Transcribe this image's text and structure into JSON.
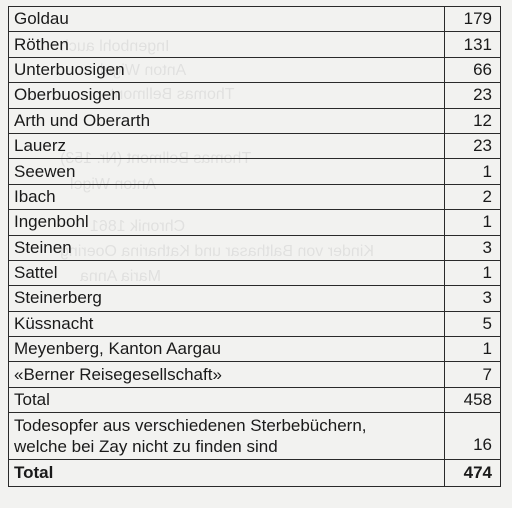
{
  "rows": [
    {
      "place": "Goldau",
      "count": "179"
    },
    {
      "place": "Röthen",
      "count": "131"
    },
    {
      "place": "Unterbuosigen",
      "count": "66"
    },
    {
      "place": "Oberbuosigen",
      "count": "23"
    },
    {
      "place": "Arth und Oberarth",
      "count": "12"
    },
    {
      "place": "Lauerz",
      "count": "23"
    },
    {
      "place": "Seewen",
      "count": "1"
    },
    {
      "place": "Ibach",
      "count": "2"
    },
    {
      "place": "Ingenbohl",
      "count": "1"
    },
    {
      "place": "Steinen",
      "count": "3"
    },
    {
      "place": "Sattel",
      "count": "1"
    },
    {
      "place": "Steinerberg",
      "count": "3"
    },
    {
      "place": "Küssnacht",
      "count": "5"
    },
    {
      "place": "Meyenberg, Kanton Aargau",
      "count": "1"
    },
    {
      "place": "«Berner Reisegesellschaft»",
      "count": "7"
    }
  ],
  "subtotal": {
    "label": "Total",
    "count": "458"
  },
  "extra": {
    "line1": "Todesopfer aus verschiedenen Sterbebüchern,",
    "line2": "welche bei Zay nicht zu finden sind",
    "count": "16"
  },
  "grand_total": {
    "label": "Total",
    "count": "474"
  }
}
